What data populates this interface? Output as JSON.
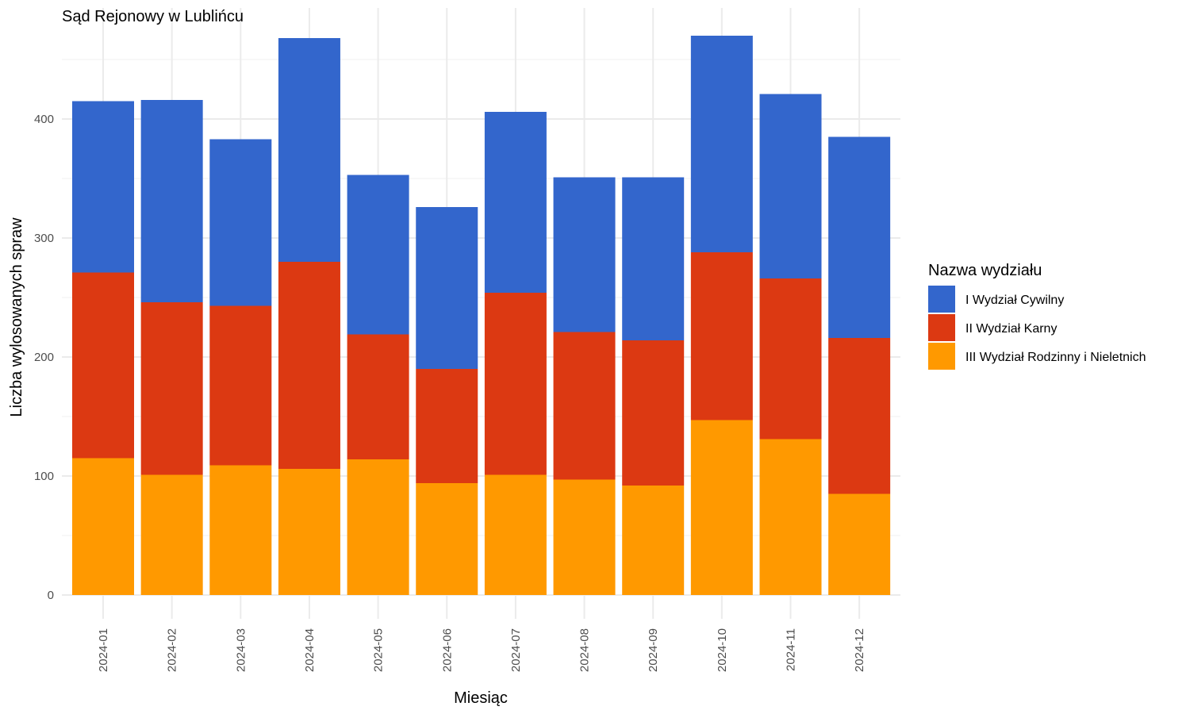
{
  "chart_data": {
    "type": "bar",
    "stacked": true,
    "title": "Sąd Rejonowy w Lublińcu",
    "xlabel": "Miesiąc",
    "ylabel": "Liczba wylosowanych spraw",
    "ylim": [
      0,
      493
    ],
    "yticks": [
      0,
      100,
      200,
      300,
      400
    ],
    "grid": true,
    "legend": {
      "title": "Nazwa wydziału",
      "placement": "right"
    },
    "categories": [
      "2024-01",
      "2024-02",
      "2024-03",
      "2024-04",
      "2024-05",
      "2024-06",
      "2024-07",
      "2024-08",
      "2024-09",
      "2024-10",
      "2024-11",
      "2024-12"
    ],
    "series": [
      {
        "name": "III Wydział Rodzinny i Nieletnich",
        "color": "#FF9900",
        "values": [
          115,
          101,
          109,
          106,
          114,
          94,
          101,
          97,
          92,
          147,
          131,
          85
        ]
      },
      {
        "name": "II Wydział Karny",
        "color": "#DC3912",
        "values": [
          156,
          145,
          134,
          174,
          105,
          96,
          153,
          124,
          122,
          141,
          135,
          131
        ]
      },
      {
        "name": "I Wydział Cywilny",
        "color": "#3366CC",
        "values": [
          144,
          170,
          140,
          188,
          134,
          136,
          152,
          130,
          137,
          182,
          155,
          169
        ]
      }
    ],
    "legend_order": [
      "I Wydział Cywilny",
      "II Wydział Karny",
      "III Wydział Rodzinny i Nieletnich"
    ]
  }
}
